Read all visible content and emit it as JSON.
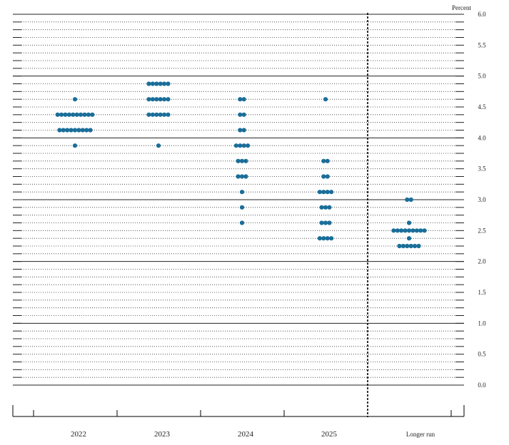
{
  "chart_data": {
    "type": "scatter",
    "subtype": "dot-plot",
    "unit_label": "Percent",
    "y_ticks": [
      "6.0",
      "5.5",
      "5.0",
      "4.5",
      "4.0",
      "3.5",
      "3.0",
      "2.5",
      "2.0",
      "1.5",
      "1.0",
      "0.5",
      "0.0"
    ],
    "ylim": [
      0,
      6.0
    ],
    "grid": "dotted at 0.125 increments, solid at whole numbers",
    "separator": "dashed vertical line before Longer run",
    "categories": [
      "2022",
      "2023",
      "2024",
      "2025",
      "Longer run"
    ],
    "dot_color": "#1a6e99",
    "series": [
      {
        "category": "2022",
        "points": [
          {
            "y": 4.625,
            "count": 1
          },
          {
            "y": 4.375,
            "count": 10
          },
          {
            "y": 4.125,
            "count": 9
          },
          {
            "y": 3.875,
            "count": 1
          }
        ]
      },
      {
        "category": "2023",
        "points": [
          {
            "y": 4.875,
            "count": 6
          },
          {
            "y": 4.625,
            "count": 6
          },
          {
            "y": 4.375,
            "count": 6
          },
          {
            "y": 3.875,
            "count": 1
          }
        ]
      },
      {
        "category": "2024",
        "points": [
          {
            "y": 4.625,
            "count": 2
          },
          {
            "y": 4.375,
            "count": 2
          },
          {
            "y": 4.125,
            "count": 2
          },
          {
            "y": 3.875,
            "count": 4
          },
          {
            "y": 3.625,
            "count": 3
          },
          {
            "y": 3.375,
            "count": 3
          },
          {
            "y": 3.125,
            "count": 1
          },
          {
            "y": 2.875,
            "count": 1
          },
          {
            "y": 2.625,
            "count": 1
          }
        ]
      },
      {
        "category": "2025",
        "points": [
          {
            "y": 4.625,
            "count": 1
          },
          {
            "y": 3.625,
            "count": 2
          },
          {
            "y": 3.375,
            "count": 2
          },
          {
            "y": 3.125,
            "count": 4
          },
          {
            "y": 2.875,
            "count": 3
          },
          {
            "y": 2.625,
            "count": 3
          },
          {
            "y": 2.375,
            "count": 4
          }
        ]
      },
      {
        "category": "Longer run",
        "points": [
          {
            "y": 3.0,
            "count": 2
          },
          {
            "y": 2.625,
            "count": 1
          },
          {
            "y": 2.5,
            "count": 9
          },
          {
            "y": 2.375,
            "count": 1
          },
          {
            "y": 2.25,
            "count": 6
          }
        ]
      }
    ]
  }
}
